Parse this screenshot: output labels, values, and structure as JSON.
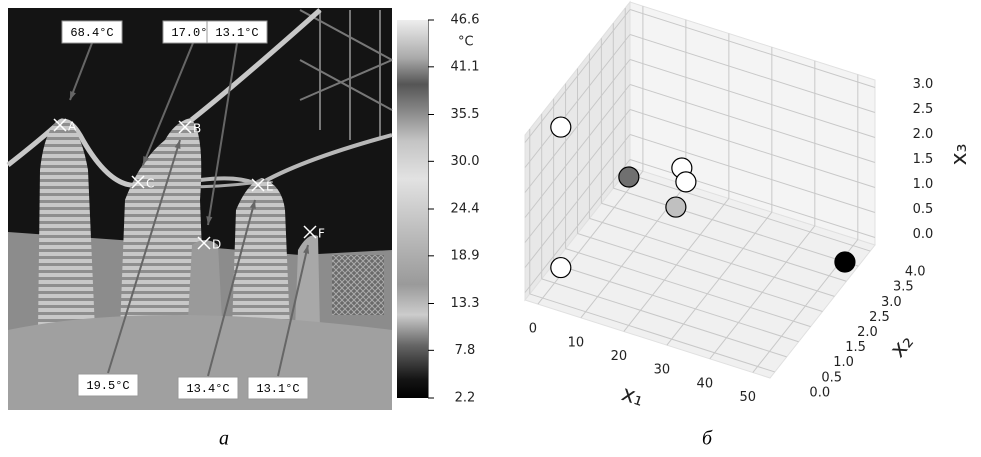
{
  "chart_data": [
    {
      "type": "thermogram",
      "caption": "а",
      "markers": [
        "A",
        "B",
        "C",
        "D",
        "E",
        "F"
      ],
      "annotations": [
        "68.4°C",
        "17.0°C",
        "13.1°C",
        "19.5°C",
        "13.4°C",
        "13.1°C"
      ],
      "colorbar": {
        "label": "°C",
        "lim": [
          2.2,
          46.6
        ],
        "ticks": [
          46.6,
          41.1,
          35.5,
          {
            "value": 30,
            "label": "30.0"
          },
          24.4,
          18.9,
          13.3,
          7.8,
          2.2
        ]
      }
    },
    {
      "type": "scatter3d",
      "caption": "б",
      "xlabel": "x₁",
      "ylabel": "x₂",
      "zlabel": "x₃",
      "xlim": [
        -3,
        54
      ],
      "ylim": [
        -0.2,
        4.2
      ],
      "zlim": [
        -0.15,
        3.15
      ],
      "xticks": [
        0,
        10,
        20,
        30,
        40,
        50
      ],
      "yticks": [
        {
          "value": 0,
          "label": "0.0"
        },
        0.5,
        {
          "value": 1,
          "label": "1.0"
        },
        1.5,
        {
          "value": 2,
          "label": "2.0"
        },
        2.5,
        {
          "value": 3,
          "label": "3.0"
        },
        3.5,
        {
          "value": 4,
          "label": "4.0"
        }
      ],
      "zticks": [
        {
          "value": 0,
          "label": "0.0"
        },
        0.5,
        {
          "value": 1,
          "label": "1.0"
        },
        1.5,
        {
          "value": 2,
          "label": "2.0"
        },
        2.5,
        {
          "value": 3,
          "label": "3.0"
        }
      ],
      "x": [
        0,
        0,
        10,
        20,
        20,
        20,
        52
      ],
      "y": [
        0.76,
        0.76,
        1.81,
        2.23,
        2.4,
        1.98,
        3.3
      ],
      "z": [
        2.81,
        0,
        1.45,
        1.65,
        1.27,
        1.02,
        0
      ],
      "colors": [
        "#ffffff",
        "#ffffff",
        "#707070",
        "#ffffff",
        "#ffffff",
        "#c0c0c0",
        "#000000"
      ]
    }
  ]
}
